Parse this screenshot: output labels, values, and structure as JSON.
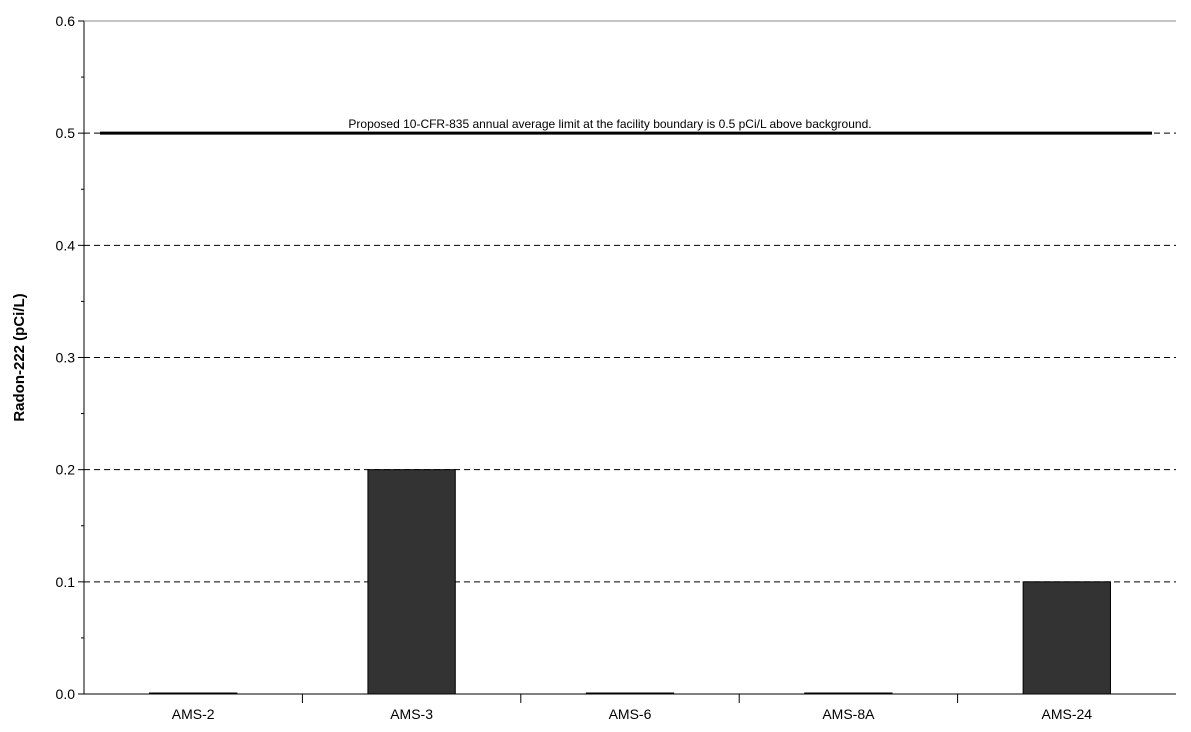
{
  "chart_data": {
    "type": "bar",
    "title": "",
    "xlabel": "",
    "ylabel": "Radon-222 (pCi/L)",
    "categories": [
      "AMS-2",
      "AMS-3",
      "AMS-6",
      "AMS-8A",
      "AMS-24"
    ],
    "values": [
      0.0,
      0.2,
      0.0,
      0.0,
      0.1
    ],
    "ylim": [
      0.0,
      0.6
    ],
    "yticks": [
      "0.0",
      "0.1",
      "0.2",
      "0.3",
      "0.4",
      "0.5",
      "0.6"
    ],
    "grid": "horizontal-dashed",
    "bar_color": "#333333",
    "reference_line": {
      "value": 0.5,
      "label": "Proposed 10-CFR-835 annual average limit at the facility boundary is 0.5 pCi/L above background."
    }
  }
}
